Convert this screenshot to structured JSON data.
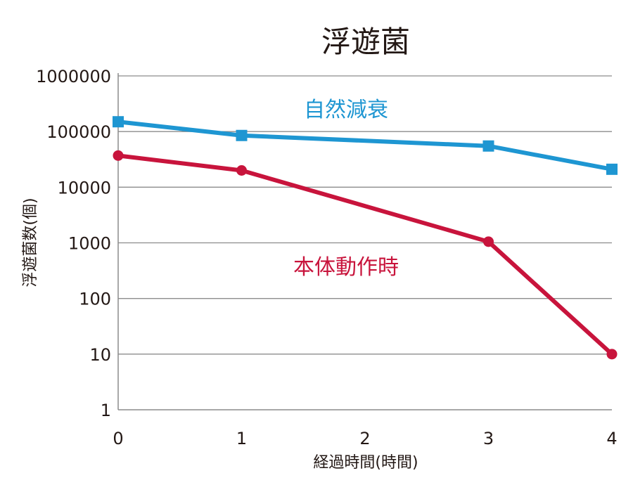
{
  "chart_data": {
    "type": "line",
    "title": "浮遊菌",
    "xlabel": "経過時間(時間)",
    "ylabel": "浮遊菌数(個)",
    "y_scale": "log",
    "ylim": [
      1,
      1000000
    ],
    "xlim": [
      0,
      4
    ],
    "x_ticks": [
      "0",
      "1",
      "2",
      "3",
      "4"
    ],
    "y_ticks": [
      "1",
      "10",
      "100",
      "1000",
      "10000",
      "100000",
      "1000000"
    ],
    "grid": true,
    "series": [
      {
        "name": "自然減衰",
        "color": "#1e96d2",
        "marker": "square",
        "x": [
          0,
          1,
          3,
          4
        ],
        "y": [
          150000,
          85000,
          55000,
          21000
        ]
      },
      {
        "name": "本体動作時",
        "color": "#c8143c",
        "marker": "circle",
        "x": [
          0,
          1,
          3,
          4
        ],
        "y": [
          37000,
          20000,
          1050,
          10
        ]
      }
    ]
  }
}
